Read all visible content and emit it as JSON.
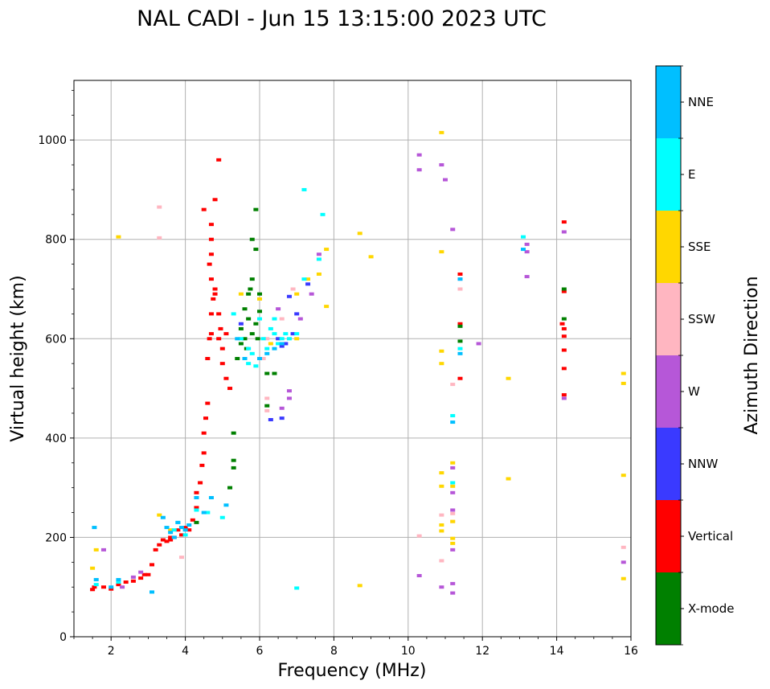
{
  "chart_data": {
    "type": "scatter",
    "title": "NAL CADI - Jun 15 13:15:00 2023 UTC",
    "xlabel": "Frequency (MHz)",
    "ylabel": "Virtual height (km)",
    "xlim": [
      1,
      16
    ],
    "ylim": [
      0,
      1120
    ],
    "xticks": [
      2,
      4,
      6,
      8,
      10,
      12,
      14,
      16
    ],
    "yticks": [
      0,
      200,
      400,
      600,
      800,
      1000
    ],
    "grid": true,
    "colorbar": {
      "label": "Azimuth Direction",
      "categories": [
        "X-mode",
        "Vertical",
        "NNW",
        "W",
        "SSW",
        "SSE",
        "E",
        "NNE"
      ],
      "colors": [
        "#008000",
        "#ff0000",
        "#3a3aff",
        "#b657d8",
        "#ffb6c1",
        "#ffd700",
        "#00ffff",
        "#00bfff"
      ]
    },
    "series": [
      {
        "name": "Vertical",
        "points": [
          [
            1.5,
            95
          ],
          [
            1.55,
            100
          ],
          [
            1.8,
            100
          ],
          [
            2.0,
            96
          ],
          [
            2.2,
            105
          ],
          [
            2.4,
            110
          ],
          [
            2.6,
            112
          ],
          [
            2.8,
            118
          ],
          [
            3.0,
            125
          ],
          [
            3.1,
            145
          ],
          [
            3.2,
            175
          ],
          [
            3.3,
            185
          ],
          [
            3.4,
            195
          ],
          [
            3.5,
            192
          ],
          [
            3.6,
            200
          ],
          [
            3.7,
            200
          ],
          [
            3.8,
            215
          ],
          [
            3.9,
            205
          ],
          [
            4.0,
            220
          ],
          [
            4.1,
            215
          ],
          [
            4.2,
            235
          ],
          [
            4.3,
            260
          ],
          [
            4.3,
            290
          ],
          [
            4.4,
            310
          ],
          [
            4.45,
            345
          ],
          [
            4.5,
            370
          ],
          [
            4.5,
            410
          ],
          [
            4.55,
            440
          ],
          [
            4.6,
            470
          ],
          [
            4.6,
            560
          ],
          [
            4.65,
            600
          ],
          [
            4.7,
            610
          ],
          [
            4.7,
            650
          ],
          [
            4.75,
            680
          ],
          [
            4.8,
            700
          ],
          [
            4.7,
            720
          ],
          [
            4.65,
            750
          ],
          [
            4.7,
            800
          ],
          [
            4.7,
            830
          ],
          [
            4.8,
            880
          ],
          [
            4.9,
            960
          ],
          [
            4.9,
            600
          ],
          [
            5.0,
            580
          ],
          [
            5.0,
            550
          ],
          [
            5.1,
            520
          ],
          [
            5.2,
            500
          ],
          [
            4.9,
            650
          ],
          [
            4.8,
            690
          ],
          [
            4.5,
            860
          ],
          [
            4.7,
            770
          ],
          [
            4.95,
            620
          ],
          [
            5.1,
            610
          ],
          [
            11.4,
            630
          ],
          [
            11.4,
            520
          ],
          [
            11.4,
            730
          ],
          [
            14.2,
            835
          ],
          [
            14.2,
            695
          ],
          [
            14.2,
            620
          ],
          [
            14.2,
            605
          ],
          [
            14.2,
            577
          ],
          [
            14.2,
            540
          ],
          [
            14.2,
            487
          ],
          [
            14.15,
            630
          ],
          [
            2.9,
            125
          ],
          [
            3.6,
            195
          ]
        ]
      },
      {
        "name": "X-mode",
        "points": [
          [
            5.2,
            300
          ],
          [
            5.3,
            340
          ],
          [
            5.3,
            355
          ],
          [
            5.3,
            410
          ],
          [
            5.4,
            560
          ],
          [
            5.5,
            590
          ],
          [
            5.5,
            620
          ],
          [
            5.6,
            600
          ],
          [
            5.7,
            640
          ],
          [
            5.7,
            690
          ],
          [
            5.8,
            720
          ],
          [
            5.8,
            800
          ],
          [
            5.9,
            780
          ],
          [
            5.9,
            860
          ],
          [
            6.0,
            655
          ],
          [
            5.8,
            610
          ],
          [
            5.6,
            660
          ],
          [
            5.9,
            630
          ],
          [
            6.0,
            690
          ],
          [
            6.2,
            530
          ],
          [
            6.4,
            530
          ],
          [
            6.2,
            465
          ],
          [
            4.3,
            230
          ],
          [
            11.4,
            625
          ],
          [
            11.4,
            595
          ],
          [
            14.2,
            640
          ],
          [
            14.2,
            700
          ],
          [
            5.75,
            700
          ],
          [
            5.65,
            580
          ],
          [
            5.95,
            600
          ]
        ]
      },
      {
        "name": "NNW",
        "points": [
          [
            6.3,
            437
          ],
          [
            6.6,
            440
          ],
          [
            6.7,
            590
          ],
          [
            6.5,
            600
          ],
          [
            6.6,
            585
          ],
          [
            6.9,
            610
          ],
          [
            7.0,
            650
          ],
          [
            5.5,
            630
          ],
          [
            6.8,
            685
          ],
          [
            7.3,
            710
          ]
        ]
      },
      {
        "name": "W",
        "points": [
          [
            2.8,
            130
          ],
          [
            2.6,
            120
          ],
          [
            2.3,
            100
          ],
          [
            1.8,
            175
          ],
          [
            6.6,
            460
          ],
          [
            6.8,
            480
          ],
          [
            6.8,
            495
          ],
          [
            7.1,
            640
          ],
          [
            7.4,
            690
          ],
          [
            7.6,
            770
          ],
          [
            10.3,
            970
          ],
          [
            10.3,
            940
          ],
          [
            10.3,
            123
          ],
          [
            10.9,
            950
          ],
          [
            11.0,
            920
          ],
          [
            11.2,
            820
          ],
          [
            11.2,
            340
          ],
          [
            11.2,
            290
          ],
          [
            11.2,
            255
          ],
          [
            11.2,
            175
          ],
          [
            11.2,
            107
          ],
          [
            11.2,
            88
          ],
          [
            11.4,
            720
          ],
          [
            11.9,
            590
          ],
          [
            13.2,
            790
          ],
          [
            13.2,
            775
          ],
          [
            13.2,
            725
          ],
          [
            14.2,
            815
          ],
          [
            14.2,
            480
          ],
          [
            15.8,
            150
          ],
          [
            10.9,
            100
          ],
          [
            6.5,
            660
          ]
        ]
      },
      {
        "name": "SSW",
        "points": [
          [
            3.3,
            865
          ],
          [
            3.3,
            803
          ],
          [
            6.2,
            480
          ],
          [
            6.2,
            455
          ],
          [
            6.2,
            600
          ],
          [
            6.6,
            640
          ],
          [
            6.1,
            560
          ],
          [
            10.3,
            203
          ],
          [
            10.9,
            153
          ],
          [
            10.9,
            245
          ],
          [
            11.2,
            508
          ],
          [
            11.2,
            248
          ],
          [
            11.2,
            232
          ],
          [
            11.4,
            700
          ],
          [
            15.8,
            180
          ],
          [
            3.9,
            160
          ],
          [
            6.9,
            700
          ]
        ]
      },
      {
        "name": "SSE",
        "points": [
          [
            1.5,
            138
          ],
          [
            1.6,
            175
          ],
          [
            2.2,
            805
          ],
          [
            3.3,
            245
          ],
          [
            3.6,
            215
          ],
          [
            5.5,
            690
          ],
          [
            6.3,
            590
          ],
          [
            7.0,
            690
          ],
          [
            7.3,
            720
          ],
          [
            7.6,
            730
          ],
          [
            7.8,
            780
          ],
          [
            7.8,
            665
          ],
          [
            8.7,
            812
          ],
          [
            9.0,
            765
          ],
          [
            8.7,
            103
          ],
          [
            10.9,
            1015
          ],
          [
            10.9,
            775
          ],
          [
            10.9,
            575
          ],
          [
            10.9,
            550
          ],
          [
            10.9,
            330
          ],
          [
            10.9,
            303
          ],
          [
            10.9,
            225
          ],
          [
            10.9,
            213
          ],
          [
            11.2,
            350
          ],
          [
            11.2,
            303
          ],
          [
            11.2,
            198
          ],
          [
            11.2,
            188
          ],
          [
            11.2,
            232
          ],
          [
            12.7,
            520
          ],
          [
            12.7,
            318
          ],
          [
            15.8,
            530
          ],
          [
            15.8,
            510
          ],
          [
            15.8,
            325
          ],
          [
            15.8,
            117
          ],
          [
            6.0,
            680
          ],
          [
            7.0,
            600
          ]
        ]
      },
      {
        "name": "E",
        "points": [
          [
            1.6,
            105
          ],
          [
            2.2,
            110
          ],
          [
            3.8,
            230
          ],
          [
            3.7,
            215
          ],
          [
            4.0,
            205
          ],
          [
            4.3,
            255
          ],
          [
            4.6,
            250
          ],
          [
            5.0,
            240
          ],
          [
            5.3,
            650
          ],
          [
            5.5,
            600
          ],
          [
            5.7,
            580
          ],
          [
            5.9,
            545
          ],
          [
            6.1,
            600
          ],
          [
            6.2,
            580
          ],
          [
            6.4,
            610
          ],
          [
            6.6,
            600
          ],
          [
            6.8,
            600
          ],
          [
            6.5,
            590
          ],
          [
            6.3,
            620
          ],
          [
            6.0,
            640
          ],
          [
            5.7,
            550
          ],
          [
            7.0,
            610
          ],
          [
            7.2,
            720
          ],
          [
            7.2,
            900
          ],
          [
            7.6,
            760
          ],
          [
            7.7,
            850
          ],
          [
            7.0,
            98
          ],
          [
            11.2,
            445
          ],
          [
            11.2,
            310
          ],
          [
            11.4,
            580
          ],
          [
            13.1,
            805
          ],
          [
            6.7,
            610
          ],
          [
            5.8,
            570
          ],
          [
            6.4,
            640
          ]
        ]
      },
      {
        "name": "NNE",
        "points": [
          [
            1.55,
            220
          ],
          [
            1.6,
            115
          ],
          [
            2.0,
            100
          ],
          [
            2.2,
            115
          ],
          [
            3.1,
            90
          ],
          [
            3.4,
            240
          ],
          [
            3.5,
            220
          ],
          [
            3.6,
            210
          ],
          [
            3.8,
            230
          ],
          [
            3.9,
            220
          ],
          [
            4.1,
            225
          ],
          [
            4.3,
            280
          ],
          [
            4.5,
            250
          ],
          [
            4.7,
            280
          ],
          [
            5.1,
            265
          ],
          [
            5.4,
            600
          ],
          [
            5.6,
            560
          ],
          [
            6.0,
            560
          ],
          [
            6.2,
            570
          ],
          [
            6.4,
            580
          ],
          [
            6.6,
            590
          ],
          [
            11.4,
            570
          ],
          [
            11.2,
            432
          ],
          [
            11.4,
            720
          ],
          [
            13.1,
            780
          ],
          [
            4.0,
            215
          ],
          [
            3.7,
            200
          ]
        ]
      }
    ]
  }
}
